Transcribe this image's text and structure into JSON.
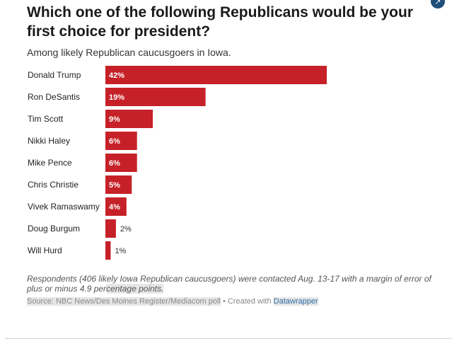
{
  "title": "Which one of the following Republicans would be your first choice for president?",
  "subtitle": "Among likely Republican caucusgoers in Iowa.",
  "note_main": "Respondents (406 likely Iowa Republican caucusgoers) were contacted Aug. 13-17 with a margin of error of plus or minus 4.9 per",
  "note_tail": "centage points.",
  "footer": {
    "source": "Source: NBC News/Des Moines Register/Mediacom poll",
    "separator": " • Created with ",
    "link": "Datawrapper"
  },
  "icons": {
    "expand": "expand-arrows-icon"
  },
  "colors": {
    "bar": "#c62128",
    "label_inside": "#ffffff",
    "label_outside": "#333333"
  },
  "chart_data": {
    "type": "bar",
    "orientation": "horizontal",
    "categories": [
      "Donald Trump",
      "Ron DeSantis",
      "Tim Scott",
      "Nikki Haley",
      "Mike Pence",
      "Chris Christie",
      "Vivek Ramaswamy",
      "Doug Burgum",
      "Will Hurd"
    ],
    "values": [
      42,
      19,
      9,
      6,
      6,
      5,
      4,
      2,
      1
    ],
    "value_labels": [
      "42%",
      "19%",
      "9%",
      "6%",
      "6%",
      "5%",
      "4%",
      "2%",
      "1%"
    ],
    "xlim": [
      0,
      42
    ],
    "grid": false,
    "legend": "none"
  }
}
